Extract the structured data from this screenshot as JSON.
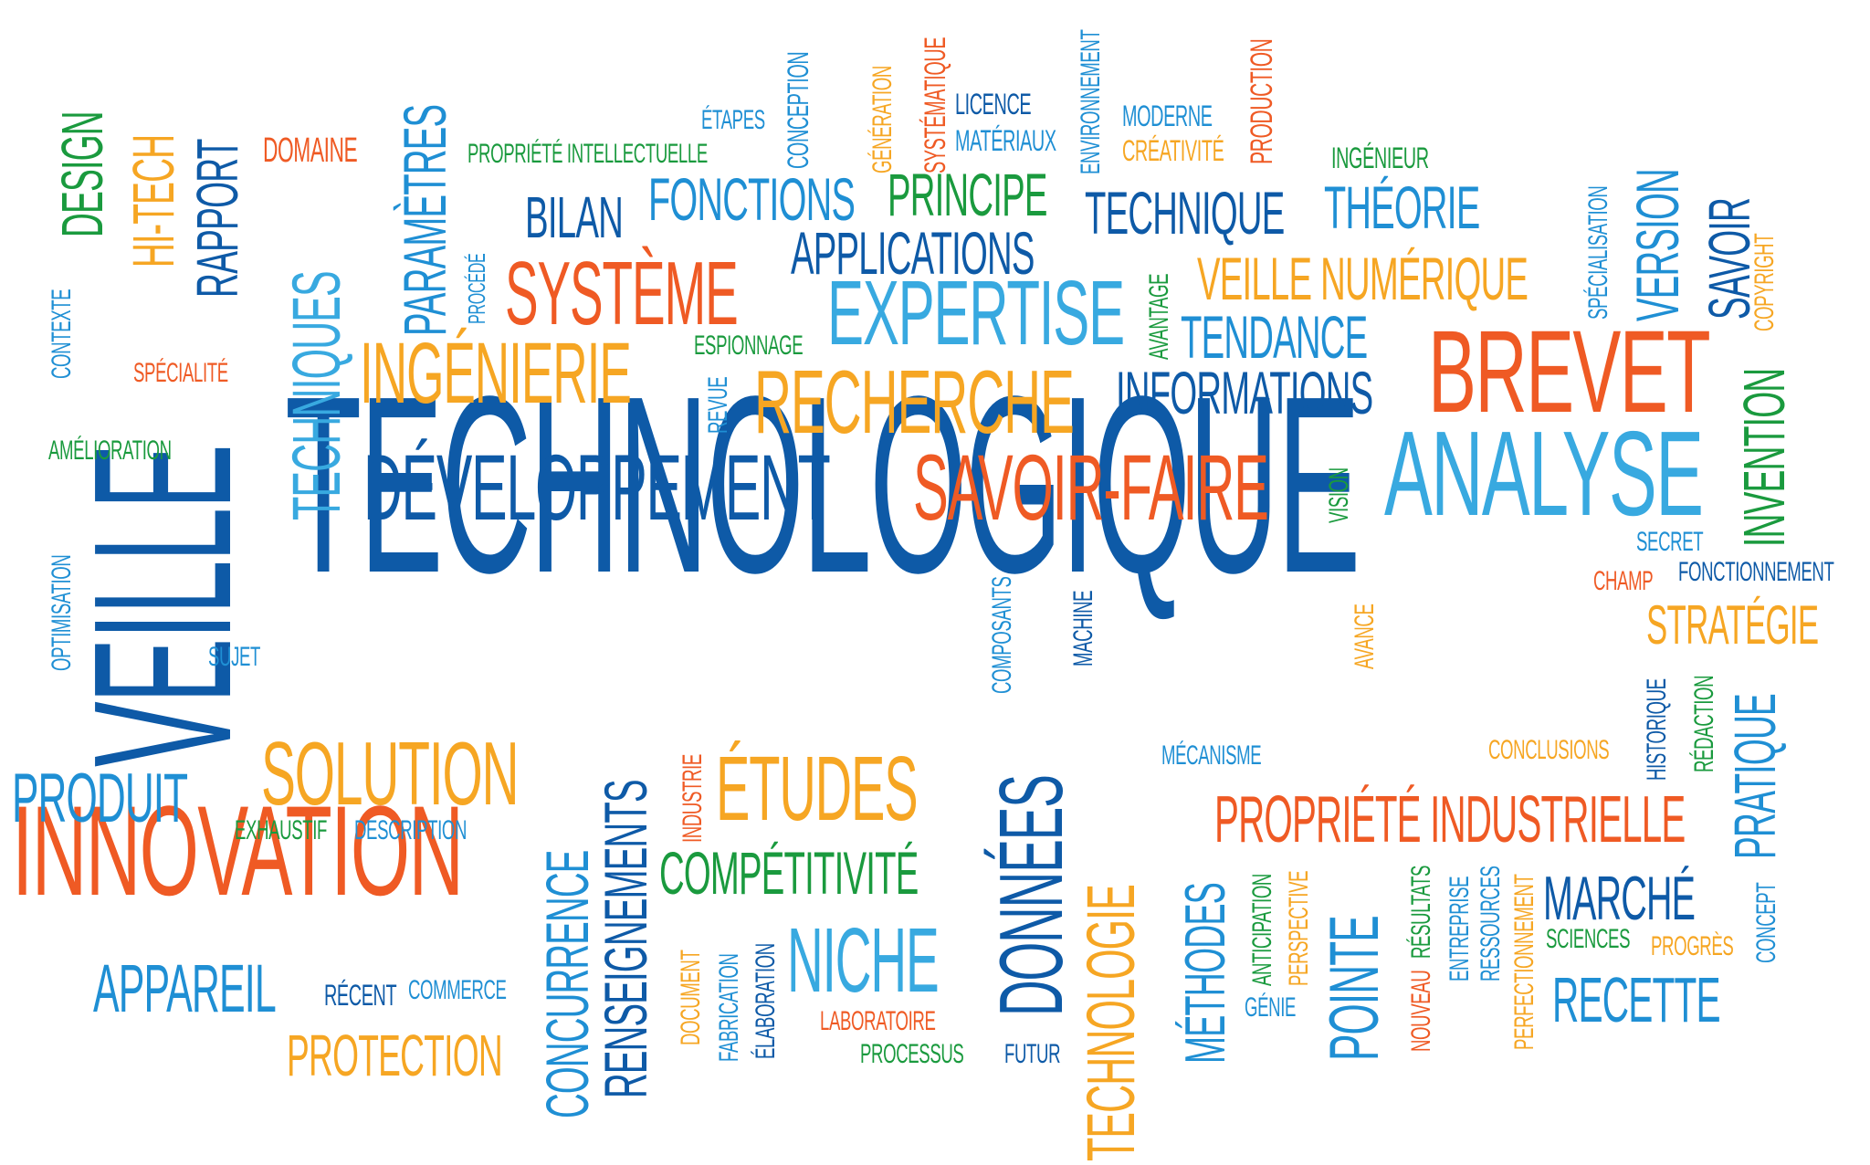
{
  "colors": {
    "dark_blue": "#0e5aa7",
    "blue": "#1f8fd4",
    "light_blue": "#38a9e0",
    "orange": "#ef5a24",
    "yellow": "#f6a623",
    "green": "#1a9a3e"
  },
  "words": {
    "technologique": "TECHNOLOGIQUE",
    "veille": "VEILLE",
    "innovation": "INNOVATION",
    "developpement": "DÉVELOPPEMENT",
    "savoir_faire": "SAVOIR-FAIRE",
    "analyse": "ANALYSE",
    "brevet": "BREVET",
    "expertise": "EXPERTISE",
    "recherche": "RECHERCHE",
    "ingenierie": "INGÉNIERIE",
    "systeme": "SYSTÈME",
    "techniques": "TECHNIQUES",
    "parametres": "PARAMÈTRES",
    "rapport": "RAPPORT",
    "hi_tech": "HI-TECH",
    "design": "DESIGN",
    "domaine": "DOMAINE",
    "propriete_intellectuelle": "PROPRIÉTÉ INTELLECTUELLE",
    "etapes": "ÉTAPES",
    "conception": "CONCEPTION",
    "generation": "GÉNÉRATION",
    "systematique": "SYSTÉMATIQUE",
    "licence": "LICENCE",
    "materiaux": "MATÉRIAUX",
    "environnement": "ENVIRONNEMENT",
    "moderne": "MODERNE",
    "creativite": "CRÉATIVITÉ",
    "production": "PRODUCTION",
    "ingenieur": "INGÉNIEUR",
    "bilan": "BILAN",
    "fonctions": "FONCTIONS",
    "principe": "PRINCIPE",
    "technique": "TECHNIQUE",
    "theorie": "THÉORIE",
    "applications": "APPLICATIONS",
    "veille_numerique": "VEILLE NUMÉRIQUE",
    "tendance": "TENDANCE",
    "avantage": "AVANTAGE",
    "informations": "INFORMATIONS",
    "version": "VERSION",
    "savoir": "SAVOIR",
    "copyright": "COPYRIGHT",
    "specialisation": "SPÉCIALISATION",
    "invention": "INVENTION",
    "espionnage": "ESPIONNAGE",
    "revue": "REVUE",
    "procede": "PROCÉDÉ",
    "contexte": "CONTEXTE",
    "specialite": "SPÉCIALITÉ",
    "amelioration": "AMÉLIORATION",
    "optimisation": "OPTIMISATION",
    "sujet": "SUJET",
    "vision": "VISION",
    "secret": "SECRET",
    "champ": "CHAMP",
    "fonctionnement": "FONCTIONNEMENT",
    "strategie": "STRATÉGIE",
    "historique": "HISTORIQUE",
    "redaction": "RÉDACTION",
    "pratique": "PRATIQUE",
    "conclusions": "CONCLUSIONS",
    "concept": "CONCEPT",
    "composants": "COMPOSANTS",
    "machine": "MACHINE",
    "avance": "AVANCE",
    "mecanisme": "MÉCANISME",
    "solution": "SOLUTION",
    "produit": "PRODUIT",
    "exhaustif": "EXHAUSTIF",
    "description": "DESCRIPTION",
    "appareil": "APPAREIL",
    "recent": "RÉCENT",
    "commerce": "COMMERCE",
    "protection": "PROTECTION",
    "concurrence": "CONCURRENCE",
    "renseignements": "RENSEIGNEMENTS",
    "industrie": "INDUSTRIE",
    "etudes": "ÉTUDES",
    "competitivite": "COMPÉTITIVITÉ",
    "document": "DOCUMENT",
    "fabrication": "FABRICATION",
    "elaboration": "ÉLABORATION",
    "niche": "NICHE",
    "laboratoire": "LABORATOIRE",
    "processus": "PROCESSUS",
    "donnees": "DONNÉES",
    "futur": "FUTUR",
    "technologie": "TECHNOLOGIE",
    "methodes": "MÉTHODES",
    "anticipation": "ANTICIPATION",
    "genie": "GÉNIE",
    "perspective": "PERSPECTIVE",
    "pointe": "POINTE",
    "nouveau": "NOUVEAU",
    "resultats": "RÉSULTATS",
    "entreprise": "ENTREPRISE",
    "ressources": "RESSOURCES",
    "perfectionnement": "PERFECTIONNEMENT",
    "propriete_industrielle": "PROPRIÉTÉ INDUSTRIELLE",
    "marche": "MARCHÉ",
    "sciences": "SCIENCES",
    "progres": "PROGRÈS",
    "recette": "RECETTE"
  }
}
